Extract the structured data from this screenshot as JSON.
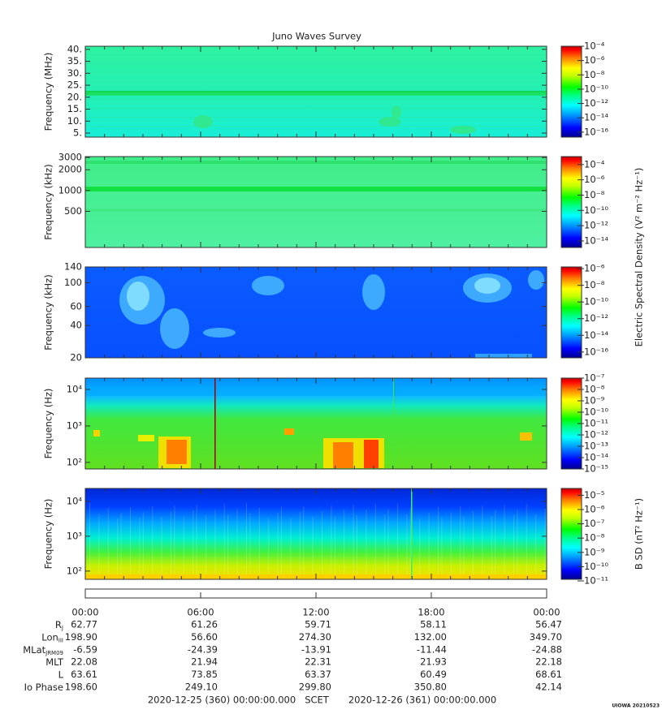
{
  "title": "Juno Waves Survey",
  "chart_data": [
    {
      "type": "spectrogram",
      "ylabel": "Frequency (MHz)",
      "log": false,
      "ylim": [
        3.3,
        41.3
      ],
      "yticks": [
        {
          "value": 5,
          "label": "5."
        },
        {
          "value": 10,
          "label": "10."
        },
        {
          "value": 15,
          "label": "15."
        },
        {
          "value": 20,
          "label": "20."
        },
        {
          "value": 25,
          "label": "25."
        },
        {
          "value": 30,
          "label": "30."
        },
        {
          "value": 35,
          "label": "35."
        },
        {
          "value": 40,
          "label": "40."
        }
      ],
      "colorbar": {
        "log": true,
        "clim": [
          2e-17,
          0.0001
        ],
        "ticks": [
          {
            "value": 1e-16,
            "label": "10⁻¹⁶"
          },
          {
            "value": 1e-14,
            "label": "10⁻¹⁴"
          },
          {
            "value": 1e-12,
            "label": "10⁻¹²"
          },
          {
            "value": 1e-10,
            "label": "10⁻¹⁰"
          },
          {
            "value": 1e-08,
            "label": "10⁻⁸"
          },
          {
            "value": 1e-06,
            "label": "10⁻⁶"
          },
          {
            "value": 0.0001,
            "label": "10⁻⁴"
          }
        ]
      }
    },
    {
      "type": "spectrogram",
      "ylabel": "Frequency (kHz)",
      "log": true,
      "ylim": [
        150,
        3100
      ],
      "yticks": [
        500,
        1000,
        2000,
        3000
      ],
      "colorbar": {
        "log": true,
        "clim": [
          1.4e-15,
          0.0011
        ],
        "label": "Electric Spectral Density (V² m⁻² Hz⁻¹)",
        "ticks": [
          {
            "value": 1e-14,
            "label": "10⁻¹⁴"
          },
          {
            "value": 1e-12,
            "label": "10⁻¹²"
          },
          {
            "value": 1e-10,
            "label": "10⁻¹⁰"
          },
          {
            "value": 1e-08,
            "label": "10⁻⁸"
          },
          {
            "value": 1e-06,
            "label": "10⁻⁶"
          },
          {
            "value": 0.0001,
            "label": "10⁻⁴"
          }
        ]
      }
    },
    {
      "type": "spectrogram",
      "ylabel": "Frequency (kHz)",
      "log": true,
      "ylim": [
        20,
        140
      ],
      "yticks": [
        20,
        40,
        60,
        100,
        140
      ],
      "colorbar": {
        "log": true,
        "clim": [
          2e-17,
          1.6e-06
        ],
        "ticks": [
          {
            "value": 1e-16,
            "label": "10⁻¹⁶"
          },
          {
            "value": 1e-14,
            "label": "10⁻¹⁴"
          },
          {
            "value": 1e-12,
            "label": "10⁻¹²"
          },
          {
            "value": 1e-10,
            "label": "10⁻¹⁰"
          },
          {
            "value": 1e-08,
            "label": "10⁻⁸"
          },
          {
            "value": 1e-06,
            "label": "10⁻⁶"
          }
        ]
      }
    },
    {
      "type": "spectrogram",
      "ylabel": "Frequency (Hz)",
      "log": true,
      "ylim": [
        66,
        20500
      ],
      "yticks": [
        {
          "value": 100,
          "label": "10²"
        },
        {
          "value": 1000,
          "label": "10³"
        },
        {
          "value": 10000,
          "label": "10⁴"
        }
      ],
      "colorbar": {
        "log": true,
        "clim": [
          1e-15,
          1e-07
        ],
        "ticks": [
          {
            "value": 1e-15,
            "label": "10⁻¹⁵"
          },
          {
            "value": 1e-14,
            "label": "10⁻¹⁴"
          },
          {
            "value": 1e-13,
            "label": "10⁻¹³"
          },
          {
            "value": 1e-12,
            "label": "10⁻¹²"
          },
          {
            "value": 1e-11,
            "label": "10⁻¹¹"
          },
          {
            "value": 1e-10,
            "label": "10⁻¹⁰"
          },
          {
            "value": 1e-09,
            "label": "10⁻⁹"
          },
          {
            "value": 1e-08,
            "label": "10⁻⁸"
          },
          {
            "value": 1e-07,
            "label": "10⁻⁷"
          }
        ]
      }
    },
    {
      "type": "spectrogram",
      "ylabel": "Frequency (Hz)",
      "log": true,
      "ylim": [
        58,
        23500
      ],
      "yticks": [
        {
          "value": 100,
          "label": "10²"
        },
        {
          "value": 1000,
          "label": "10³"
        },
        {
          "value": 10000,
          "label": "10⁴"
        }
      ],
      "colorbar": {
        "log": true,
        "clim": [
          1.3e-11,
          3e-05
        ],
        "label": "B SD (nT² Hz⁻¹)",
        "ticks": [
          {
            "value": 1e-11,
            "label": "10⁻¹¹"
          },
          {
            "value": 1e-10,
            "label": "10⁻¹⁰"
          },
          {
            "value": 1e-09,
            "label": "10⁻⁹"
          },
          {
            "value": 1e-08,
            "label": "10⁻⁸"
          },
          {
            "value": 1e-07,
            "label": "10⁻⁷"
          },
          {
            "value": 1e-06,
            "label": "10⁻⁶"
          },
          {
            "value": 1e-05,
            "label": "10⁻⁵"
          }
        ]
      }
    }
  ],
  "ephemeris": {
    "xlim": [
      0,
      24
    ],
    "xticks": [
      {
        "value": 0,
        "label": "00:00"
      },
      {
        "value": 6,
        "label": "06:00"
      },
      {
        "value": 12,
        "label": "12:00"
      },
      {
        "value": 18,
        "label": "18:00"
      },
      {
        "value": 24,
        "label": "00:00"
      }
    ],
    "rows": [
      {
        "label": "R",
        "sub": "J",
        "values": [
          "62.77",
          "61.26",
          "59.71",
          "58.11",
          "56.47"
        ]
      },
      {
        "label": "Lon",
        "sub": "III",
        "values": [
          "198.90",
          "56.60",
          "274.30",
          "132.00",
          "349.70"
        ]
      },
      {
        "label": "MLat",
        "sub": "JRM09",
        "values": [
          "-6.59",
          "-24.39",
          "-13.91",
          "-11.44",
          "-24.88"
        ]
      },
      {
        "label": "MLT",
        "values": [
          "22.08",
          "21.94",
          "22.31",
          "21.93",
          "22.18"
        ]
      },
      {
        "label": "L",
        "values": [
          "63.61",
          "73.85",
          "63.37",
          "60.49",
          "68.61"
        ]
      },
      {
        "label": "Io Phase",
        "values": [
          "198.60",
          "249.10",
          "299.80",
          "350.80",
          "42.14"
        ]
      }
    ]
  },
  "footer": {
    "start": "2020-12-25 (360) 00:00:00.000",
    "label": "SCET",
    "end": "2020-12-26 (361) 00:00:00.000",
    "stamp": "UIOWA 20210523"
  }
}
